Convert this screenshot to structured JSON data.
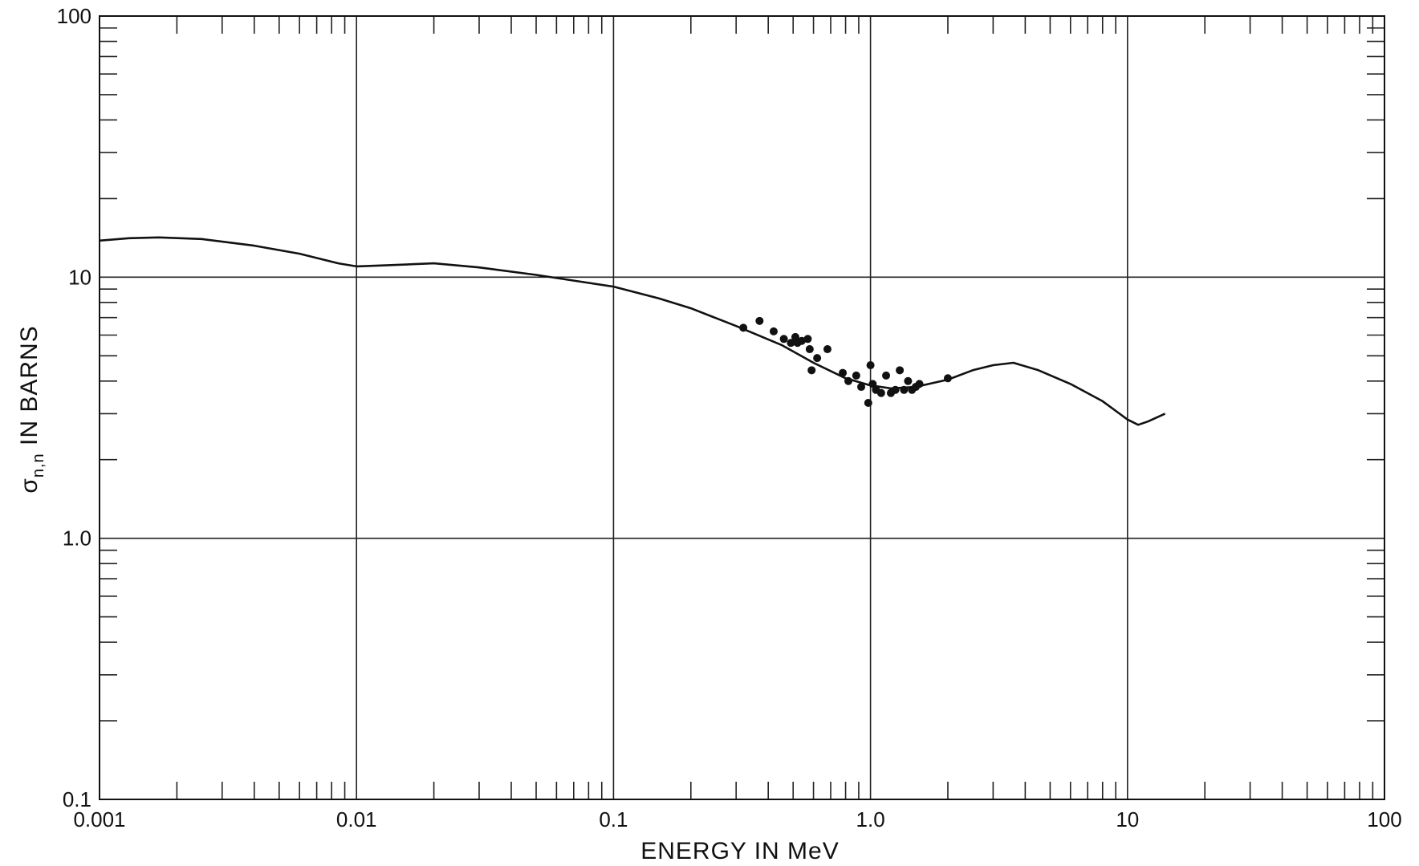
{
  "chart_data": {
    "type": "line",
    "title": "",
    "xlabel": "ENERGY IN MeV",
    "ylabel_parts": {
      "sigma": "σ",
      "subscript": "n,n",
      "rest": " IN BARNS"
    },
    "x_scale": "log",
    "y_scale": "log",
    "xlim": [
      0.001,
      100
    ],
    "ylim": [
      0.1,
      100
    ],
    "grid": true,
    "x_tick_labels": [
      {
        "value": 0.001,
        "label": "0.001"
      },
      {
        "value": 0.01,
        "label": "0.01"
      },
      {
        "value": 0.1,
        "label": "0.1"
      },
      {
        "value": 1,
        "label": "1.0"
      },
      {
        "value": 10,
        "label": "10"
      },
      {
        "value": 100,
        "label": "100"
      }
    ],
    "y_tick_labels": [
      {
        "value": 0.1,
        "label": "0.1"
      },
      {
        "value": 1,
        "label": "1.0"
      },
      {
        "value": 10,
        "label": "10"
      },
      {
        "value": 100,
        "label": "100"
      }
    ],
    "series": [
      {
        "type": "line",
        "x": [
          0.001,
          0.0013,
          0.0017,
          0.0025,
          0.004,
          0.006,
          0.0085,
          0.01,
          0.013,
          0.02,
          0.03,
          0.05,
          0.07,
          0.1,
          0.15,
          0.2,
          0.3,
          0.45,
          0.6,
          0.8,
          1.0,
          1.2,
          1.5,
          2.0,
          2.5,
          3.0,
          3.6,
          4.5,
          6.0,
          8.0,
          10.0,
          11.0,
          12.0,
          14.0
        ],
        "values": [
          13.8,
          14.1,
          14.2,
          14.0,
          13.2,
          12.3,
          11.3,
          11.0,
          11.1,
          11.3,
          10.9,
          10.2,
          9.7,
          9.2,
          8.3,
          7.6,
          6.5,
          5.5,
          4.7,
          4.1,
          3.85,
          3.75,
          3.8,
          4.05,
          4.4,
          4.6,
          4.7,
          4.4,
          3.9,
          3.35,
          2.85,
          2.72,
          2.8,
          3.0
        ]
      },
      {
        "type": "scatter",
        "x": [
          0.32,
          0.37,
          0.42,
          0.46,
          0.49,
          0.51,
          0.52,
          0.54,
          0.57,
          0.58,
          0.59,
          0.62,
          0.68,
          0.78,
          0.82,
          0.88,
          0.92,
          0.98,
          1.0,
          1.02,
          1.05,
          1.1,
          1.15,
          1.2,
          1.25,
          1.3,
          1.35,
          1.4,
          1.45,
          1.5,
          1.55,
          2.0
        ],
        "values": [
          6.4,
          6.8,
          6.2,
          5.8,
          5.6,
          5.9,
          5.6,
          5.7,
          5.8,
          5.3,
          4.4,
          4.9,
          5.3,
          4.3,
          4.0,
          4.2,
          3.8,
          3.3,
          4.6,
          3.9,
          3.7,
          3.6,
          4.2,
          3.6,
          3.7,
          4.4,
          3.7,
          4.0,
          3.7,
          3.8,
          3.9,
          4.1
        ]
      }
    ]
  }
}
